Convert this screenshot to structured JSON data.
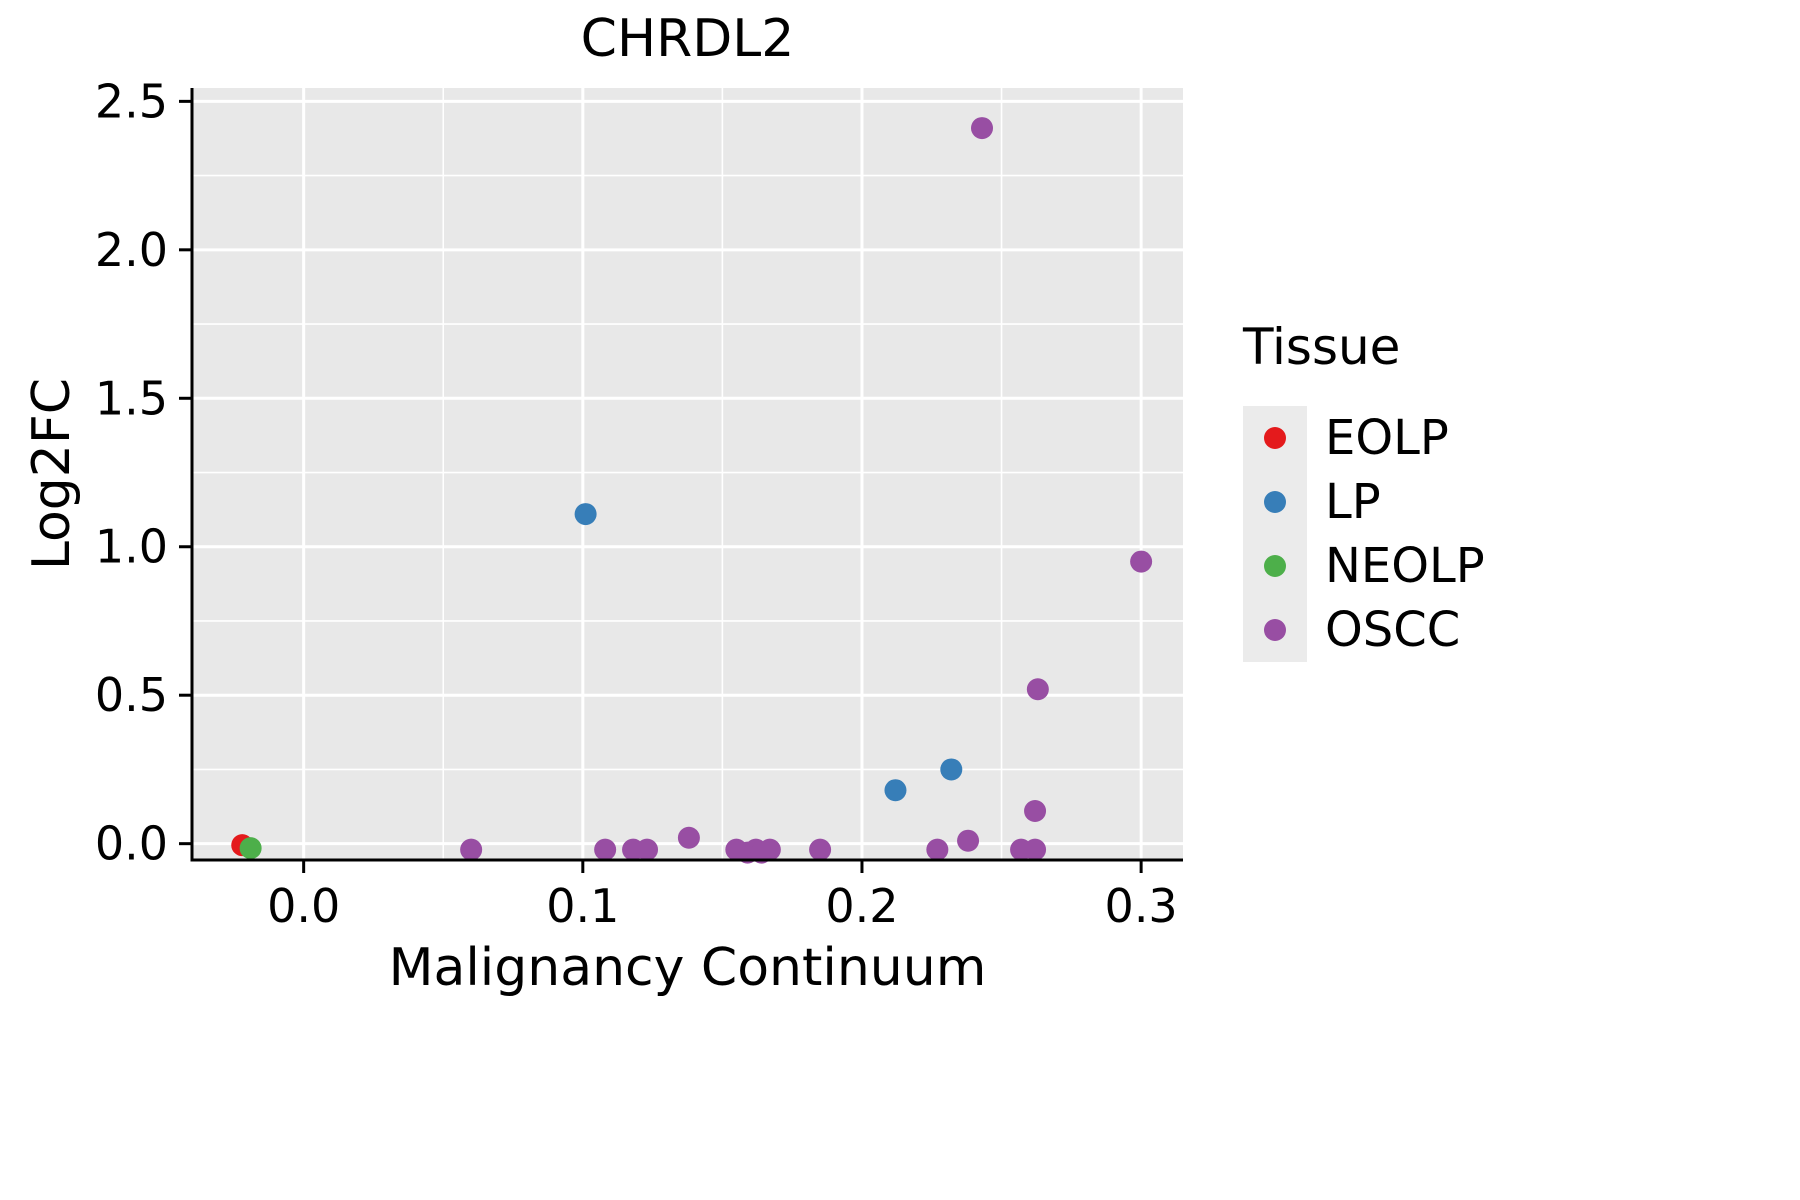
{
  "chart_data": {
    "type": "scatter",
    "title": "CHRDL2",
    "xlabel": "Malignancy Continuum",
    "ylabel": "Log2FC",
    "legend_title": "Tissue",
    "legend_position": "right",
    "grid": true,
    "panel_background": "#E8E8E8",
    "gridline_color": "#FFFFFF",
    "axis_color": "#000000",
    "xlim": [
      -0.04,
      0.315
    ],
    "ylim": [
      -0.055,
      2.545
    ],
    "xticks": [
      0.0,
      0.1,
      0.2,
      0.3
    ],
    "xtick_labels": [
      "0.0",
      "0.1",
      "0.2",
      "0.3"
    ],
    "yticks": [
      0.0,
      0.5,
      1.0,
      1.5,
      2.0,
      2.5
    ],
    "ytick_labels": [
      "0.0",
      "0.5",
      "1.0",
      "1.5",
      "2.0",
      "2.5"
    ],
    "x_minor_ticks": [
      0.05,
      0.15,
      0.25
    ],
    "y_minor_ticks": [
      0.25,
      0.75,
      1.25,
      1.75,
      2.25
    ],
    "series": [
      {
        "name": "EOLP",
        "color": "#E41A1C",
        "points": [
          [
            -0.022,
            -0.005
          ]
        ]
      },
      {
        "name": "LP",
        "color": "#377EB8",
        "points": [
          [
            0.101,
            1.11
          ],
          [
            0.212,
            0.18
          ],
          [
            0.232,
            0.25
          ]
        ]
      },
      {
        "name": "NEOLP",
        "color": "#4DAF4A",
        "points": [
          [
            -0.019,
            -0.015
          ]
        ]
      },
      {
        "name": "OSCC",
        "color": "#984EA3",
        "points": [
          [
            0.243,
            2.41
          ],
          [
            0.3,
            0.95
          ],
          [
            0.263,
            0.52
          ],
          [
            0.262,
            0.11
          ],
          [
            0.06,
            -0.02
          ],
          [
            0.108,
            -0.02
          ],
          [
            0.118,
            -0.02
          ],
          [
            0.123,
            -0.02
          ],
          [
            0.138,
            0.02
          ],
          [
            0.155,
            -0.02
          ],
          [
            0.159,
            -0.03
          ],
          [
            0.162,
            -0.02
          ],
          [
            0.164,
            -0.03
          ],
          [
            0.167,
            -0.02
          ],
          [
            0.185,
            -0.02
          ],
          [
            0.227,
            -0.02
          ],
          [
            0.238,
            0.01
          ],
          [
            0.257,
            -0.02
          ],
          [
            0.262,
            -0.02
          ]
        ]
      }
    ]
  }
}
